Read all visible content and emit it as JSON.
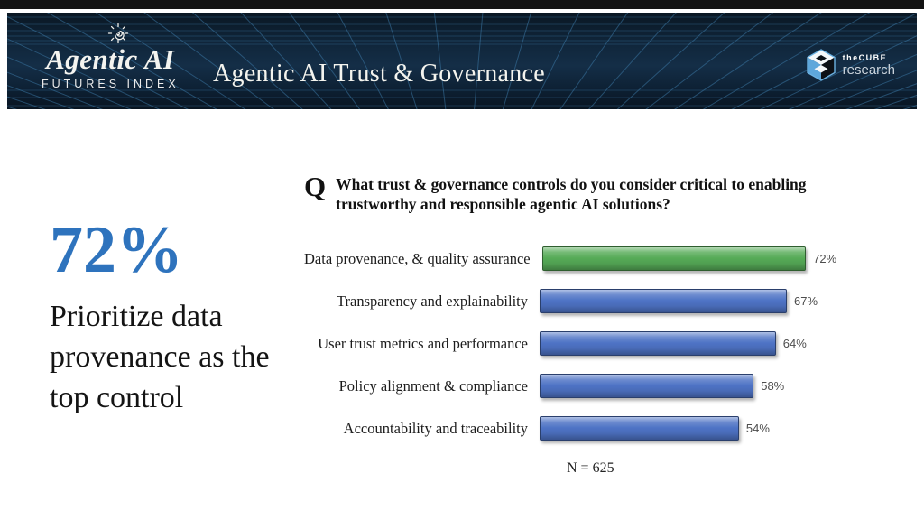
{
  "header": {
    "brand_name": "Agentic AI",
    "brand_subtitle": "FUTURES INDEX",
    "title": "Agentic AI Trust & Governance",
    "cube_brand": "theCUBE",
    "cube_sub": "research",
    "background_color": "#0f2438",
    "grid_line_color": "#3f7fae"
  },
  "stat": {
    "value": "72%",
    "caption": "Prioritize data provenance as the top control",
    "accent_color": "#2e73bd"
  },
  "question": {
    "marker": "Q",
    "text": "What trust & governance controls do you consider critical to enabling trustworthy and responsible agentic AI solutions?"
  },
  "chart_data": {
    "type": "bar",
    "orientation": "horizontal",
    "title": "",
    "categories": [
      "Data provenance, & quality assurance",
      "Transparency and explainability",
      "User trust metrics and performance",
      "Policy alignment & compliance",
      "Accountability and traceability"
    ],
    "values": [
      72,
      67,
      64,
      58,
      54
    ],
    "value_labels": [
      "72%",
      "67%",
      "64%",
      "58%",
      "54%"
    ],
    "bar_colors": [
      "#56ab57",
      "#4e73c5",
      "#4e73c5",
      "#4e73c5",
      "#4e73c5"
    ],
    "highlight_color": "#56ab57",
    "default_color": "#4e73c5",
    "xlim": [
      0,
      100
    ],
    "grid": false,
    "legend": false,
    "note": "N = 625"
  }
}
